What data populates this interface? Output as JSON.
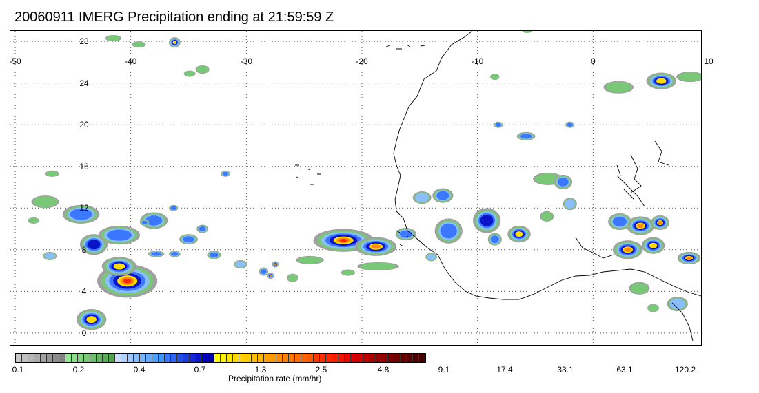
{
  "title": "20060911 IMERG Precipitation ending at 21:59:59 Z",
  "map": {
    "lon_range": [
      -50,
      10
    ],
    "lat_range": [
      -1,
      29
    ],
    "lon_ticks": [
      "-50",
      "-40",
      "-30",
      "-20",
      "-10",
      "0",
      "10"
    ],
    "lat_ticks": [
      "28",
      "24",
      "20",
      "16",
      "12",
      "8",
      "4",
      "0"
    ],
    "grid": "dotted",
    "background": "#ffffff",
    "coastline_color": "#000000"
  },
  "colorbar": {
    "caption": "Precipitation rate (mm/hr)",
    "tick_labels": [
      "0.1",
      "0.2",
      "0.4",
      "0.7",
      "1.3",
      "2.5",
      "4.8",
      "9.1",
      "17.4",
      "33.1",
      "63.1",
      "120.2"
    ],
    "colors": [
      "#c8c8c8",
      "#bebebe",
      "#b4b4b4",
      "#aaaaaa",
      "#a0a0a0",
      "#969696",
      "#8c8c8c",
      "#828282",
      "#96e696",
      "#8cdc8c",
      "#82d282",
      "#78c878",
      "#6ebe6e",
      "#64b464",
      "#5aaa5a",
      "#50a050",
      "#c8dcff",
      "#b4d2ff",
      "#a0c8ff",
      "#8cbeff",
      "#78b4ff",
      "#64aaff",
      "#50a0ff",
      "#3c96ff",
      "#3c78ff",
      "#3264f0",
      "#2850e6",
      "#1e3cdc",
      "#1428d2",
      "#0a14c8",
      "#0000be",
      "#0000aa",
      "#ffff00",
      "#fff000",
      "#ffe600",
      "#ffdc00",
      "#ffd200",
      "#ffc800",
      "#ffbe00",
      "#ffb400",
      "#ffa000",
      "#ff9600",
      "#ff8c00",
      "#ff8200",
      "#ff7800",
      "#ff6e00",
      "#ff6400",
      "#ff5a00",
      "#ff3c00",
      "#ff3200",
      "#ff2800",
      "#ff1e00",
      "#f01400",
      "#e60a00",
      "#dc0000",
      "#d20000",
      "#be0000",
      "#aa0000",
      "#960000",
      "#8c0000",
      "#780000",
      "#6e0000",
      "#640000",
      "#5a0000",
      "#500000",
      "#460000"
    ]
  },
  "precipitation_palette": {
    "light": "#a0a0a0",
    "green": "#78c878",
    "lightblue": "#8cbeff",
    "blue": "#3c78ff",
    "darkblue": "#0a14c8",
    "yellow": "#ffdc00",
    "orange": "#ff8c00",
    "red": "#ff2800"
  }
}
